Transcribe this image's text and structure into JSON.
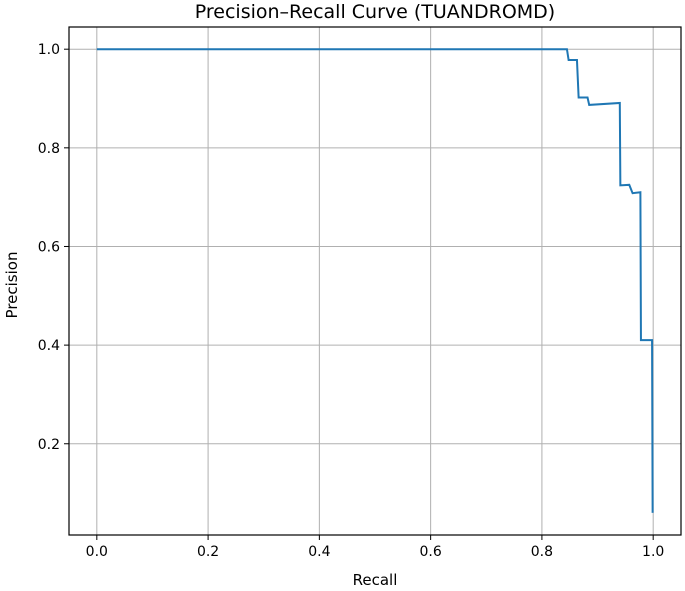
{
  "chart_data": {
    "type": "line",
    "title": "Precision–Recall Curve (TUANDROMD)",
    "xlabel": "Recall",
    "ylabel": "Precision",
    "xlim": [
      -0.05,
      1.05
    ],
    "ylim": [
      0.015,
      1.045
    ],
    "x_ticks": [
      0.0,
      0.2,
      0.4,
      0.6,
      0.8,
      1.0
    ],
    "x_tick_labels": [
      "0.0",
      "0.2",
      "0.4",
      "0.6",
      "0.8",
      "1.0"
    ],
    "y_ticks": [
      0.2,
      0.4,
      0.6,
      0.8,
      1.0
    ],
    "y_tick_labels": [
      "0.2",
      "0.4",
      "0.6",
      "0.8",
      "1.0"
    ],
    "grid": true,
    "series": [
      {
        "color": "#1f77b4",
        "points": [
          [
            0.0,
            1.0
          ],
          [
            0.845,
            1.0
          ],
          [
            0.848,
            0.978
          ],
          [
            0.863,
            0.978
          ],
          [
            0.866,
            0.902
          ],
          [
            0.882,
            0.902
          ],
          [
            0.885,
            0.887
          ],
          [
            0.94,
            0.891
          ],
          [
            0.941,
            0.724
          ],
          [
            0.957,
            0.725
          ],
          [
            0.963,
            0.708
          ],
          [
            0.977,
            0.71
          ],
          [
            0.978,
            0.41
          ],
          [
            0.998,
            0.41
          ],
          [
            0.999,
            0.06
          ]
        ]
      }
    ]
  }
}
